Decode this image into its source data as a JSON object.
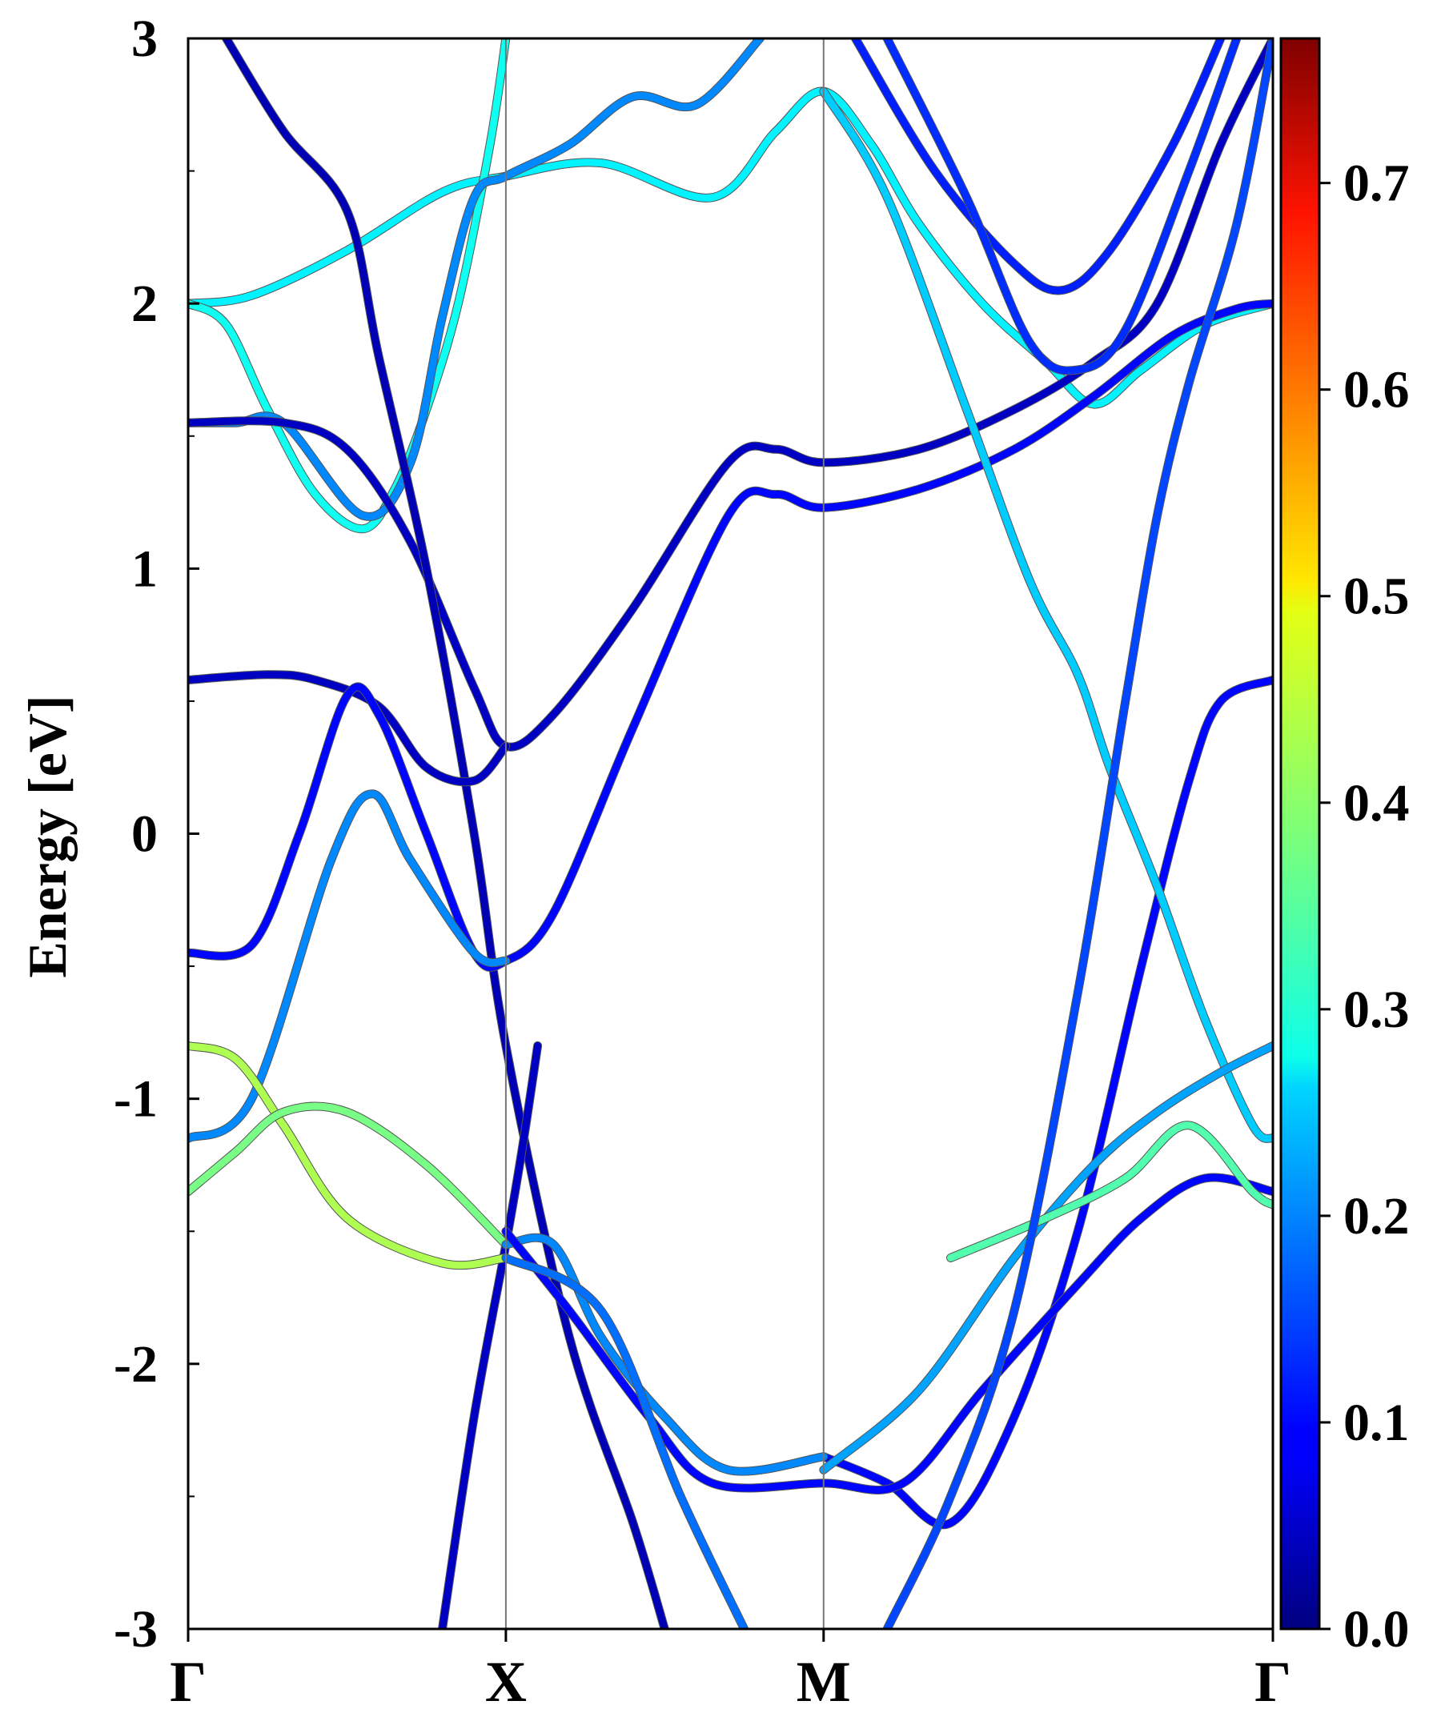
{
  "chart_data": {
    "type": "line",
    "ylabel": "Energy [eV]",
    "ylim": [
      -3,
      3
    ],
    "y_ticks": [
      "3",
      "2",
      "1",
      "0",
      "-1",
      "-2",
      "-3"
    ],
    "x_ticks": [
      "Γ",
      "X",
      "M",
      "Γ"
    ],
    "x_tick_positions": [
      0,
      1,
      2,
      3.414
    ],
    "colorbar": {
      "range": [
        0.0,
        0.77
      ],
      "ticks": [
        "0.7",
        "0.6",
        "0.5",
        "0.4",
        "0.3",
        "0.2",
        "0.1",
        "0.0"
      ],
      "colormap": "jet"
    },
    "grid": false,
    "series": [
      {
        "weight": 0.28,
        "points": [
          [
            0,
            2.0
          ],
          [
            0.2,
            2.03
          ],
          [
            0.5,
            2.2
          ],
          [
            0.8,
            2.42
          ],
          [
            1.0,
            2.48
          ],
          [
            1.3,
            2.53
          ],
          [
            1.65,
            2.4
          ],
          [
            1.85,
            2.65
          ],
          [
            2.0,
            2.8
          ],
          [
            2.15,
            2.6
          ],
          [
            2.3,
            2.3
          ],
          [
            2.5,
            2.0
          ],
          [
            2.7,
            1.78
          ],
          [
            2.85,
            1.62
          ],
          [
            3.0,
            1.75
          ],
          [
            3.2,
            1.92
          ],
          [
            3.414,
            2.0
          ]
        ]
      },
      {
        "weight": 0.3,
        "points": [
          [
            0,
            2.0
          ],
          [
            0.12,
            1.92
          ],
          [
            0.25,
            1.6
          ],
          [
            0.4,
            1.28
          ],
          [
            0.55,
            1.15
          ],
          [
            0.65,
            1.3
          ],
          [
            0.75,
            1.6
          ],
          [
            0.85,
            2.0
          ],
          [
            0.95,
            2.6
          ],
          [
            1.0,
            3.0
          ]
        ]
      },
      {
        "weight": 0.2,
        "points": [
          [
            0,
            1.55
          ],
          [
            0.15,
            1.55
          ],
          [
            0.3,
            1.55
          ],
          [
            0.55,
            1.2
          ],
          [
            0.7,
            1.4
          ],
          [
            0.8,
            1.95
          ],
          [
            0.9,
            2.4
          ],
          [
            1.0,
            2.48
          ],
          [
            1.2,
            2.6
          ],
          [
            1.4,
            2.78
          ],
          [
            1.6,
            2.75
          ],
          [
            1.8,
            3.0
          ]
        ]
      },
      {
        "weight": 0.05,
        "points": [
          [
            0,
            1.55
          ],
          [
            0.3,
            1.55
          ],
          [
            0.5,
            1.45
          ],
          [
            0.7,
            1.1
          ],
          [
            0.9,
            0.55
          ],
          [
            1.0,
            0.33
          ],
          [
            1.15,
            0.45
          ],
          [
            1.4,
            0.85
          ],
          [
            1.7,
            1.4
          ],
          [
            1.85,
            1.45
          ],
          [
            2.0,
            1.4
          ],
          [
            2.3,
            1.45
          ],
          [
            2.6,
            1.6
          ],
          [
            2.85,
            1.78
          ],
          [
            3.05,
            2.0
          ],
          [
            3.25,
            2.6
          ],
          [
            3.414,
            3.0
          ]
        ]
      },
      {
        "weight": 0.04,
        "points": [
          [
            0.12,
            3.0
          ],
          [
            0.3,
            2.65
          ],
          [
            0.5,
            2.35
          ],
          [
            0.6,
            1.8
          ],
          [
            0.75,
            1.0
          ],
          [
            0.9,
            0.0
          ],
          [
            1.0,
            -0.8
          ],
          [
            1.2,
            -1.9
          ],
          [
            1.4,
            -2.6
          ],
          [
            1.5,
            -3.0
          ]
        ]
      },
      {
        "weight": 0.05,
        "points": [
          [
            0,
            0.58
          ],
          [
            0.25,
            0.6
          ],
          [
            0.4,
            0.58
          ],
          [
            0.6,
            0.48
          ],
          [
            0.75,
            0.25
          ],
          [
            0.9,
            0.2
          ],
          [
            1.0,
            0.33
          ]
        ]
      },
      {
        "weight": 0.1,
        "points": [
          [
            0,
            -0.45
          ],
          [
            0.2,
            -0.42
          ],
          [
            0.35,
            0.0
          ],
          [
            0.5,
            0.52
          ],
          [
            0.6,
            0.45
          ],
          [
            0.75,
            0.0
          ],
          [
            0.9,
            -0.45
          ],
          [
            1.0,
            -0.48
          ],
          [
            1.15,
            -0.3
          ],
          [
            1.4,
            0.4
          ],
          [
            1.7,
            1.2
          ],
          [
            1.85,
            1.28
          ],
          [
            2.0,
            1.23
          ],
          [
            2.3,
            1.3
          ],
          [
            2.6,
            1.45
          ],
          [
            2.85,
            1.65
          ],
          [
            3.1,
            1.88
          ],
          [
            3.3,
            1.98
          ],
          [
            3.414,
            2.0
          ]
        ]
      },
      {
        "weight": 0.2,
        "points": [
          [
            0,
            -1.15
          ],
          [
            0.2,
            -1.0
          ],
          [
            0.45,
            -0.1
          ],
          [
            0.58,
            0.15
          ],
          [
            0.7,
            -0.1
          ],
          [
            0.9,
            -0.45
          ],
          [
            1.0,
            -0.48
          ]
        ]
      },
      {
        "weight": 0.05,
        "points": [
          [
            0.8,
            -3.0
          ],
          [
            0.9,
            -2.2
          ],
          [
            1.0,
            -1.55
          ],
          [
            1.05,
            -1.2
          ],
          [
            1.1,
            -0.8
          ]
        ]
      },
      {
        "weight": 0.1,
        "points": [
          [
            2.0,
            -2.35
          ],
          [
            2.2,
            -2.45
          ],
          [
            2.4,
            -2.6
          ],
          [
            2.6,
            -2.2
          ],
          [
            2.8,
            -1.5
          ],
          [
            3.0,
            -0.5
          ],
          [
            3.15,
            0.2
          ],
          [
            3.25,
            0.5
          ],
          [
            3.414,
            0.58
          ]
        ]
      },
      {
        "weight": 0.25,
        "points": [
          [
            2.0,
            2.8
          ],
          [
            2.2,
            2.4
          ],
          [
            2.45,
            1.6
          ],
          [
            2.65,
            0.95
          ],
          [
            2.8,
            0.6
          ],
          [
            2.9,
            0.25
          ],
          [
            3.05,
            -0.2
          ],
          [
            3.2,
            -0.7
          ],
          [
            3.35,
            -1.1
          ],
          [
            3.414,
            -1.15
          ]
        ]
      },
      {
        "weight": 0.42,
        "points": [
          [
            0,
            -0.8
          ],
          [
            0.15,
            -0.85
          ],
          [
            0.3,
            -1.1
          ],
          [
            0.5,
            -1.45
          ],
          [
            0.8,
            -1.62
          ],
          [
            1.0,
            -1.6
          ]
        ]
      },
      {
        "weight": 0.38,
        "points": [
          [
            0,
            -1.35
          ],
          [
            0.15,
            -1.2
          ],
          [
            0.3,
            -1.05
          ],
          [
            0.5,
            -1.05
          ],
          [
            0.75,
            -1.25
          ],
          [
            1.0,
            -1.55
          ]
        ]
      },
      {
        "weight": 0.2,
        "points": [
          [
            1.0,
            -1.55
          ],
          [
            1.15,
            -1.55
          ],
          [
            1.3,
            -1.9
          ],
          [
            1.5,
            -2.2
          ],
          [
            1.7,
            -2.4
          ],
          [
            2.0,
            -2.35
          ]
        ]
      },
      {
        "weight": 0.1,
        "points": [
          [
            1.0,
            -1.5
          ],
          [
            1.2,
            -1.8
          ],
          [
            1.45,
            -2.2
          ],
          [
            1.65,
            -2.45
          ],
          [
            2.0,
            -2.45
          ],
          [
            2.25,
            -2.45
          ],
          [
            2.5,
            -2.1
          ],
          [
            2.8,
            -1.7
          ],
          [
            3.0,
            -1.45
          ],
          [
            3.2,
            -1.3
          ],
          [
            3.414,
            -1.35
          ]
        ]
      },
      {
        "weight": 0.22,
        "points": [
          [
            2.0,
            -2.4
          ],
          [
            2.3,
            -2.1
          ],
          [
            2.6,
            -1.6
          ],
          [
            2.85,
            -1.25
          ],
          [
            3.05,
            -1.05
          ],
          [
            3.25,
            -0.9
          ],
          [
            3.414,
            -0.8
          ]
        ]
      },
      {
        "weight": 0.35,
        "points": [
          [
            2.4,
            -1.6
          ],
          [
            2.7,
            -1.45
          ],
          [
            2.95,
            -1.3
          ],
          [
            3.15,
            -1.1
          ],
          [
            3.35,
            -1.35
          ],
          [
            3.414,
            -1.4
          ]
        ]
      },
      {
        "weight": 0.18,
        "points": [
          [
            1.0,
            -1.6
          ],
          [
            1.3,
            -1.8
          ],
          [
            1.55,
            -2.5
          ],
          [
            1.75,
            -3.0
          ]
        ]
      },
      {
        "weight": 0.15,
        "points": [
          [
            2.2,
            -3.0
          ],
          [
            2.4,
            -2.5
          ],
          [
            2.6,
            -1.8
          ],
          [
            2.8,
            -0.6
          ],
          [
            2.95,
            0.5
          ],
          [
            3.05,
            1.2
          ],
          [
            3.15,
            1.7
          ],
          [
            3.3,
            2.3
          ],
          [
            3.414,
            3.0
          ]
        ]
      },
      {
        "weight": 0.12,
        "points": [
          [
            2.1,
            3.0
          ],
          [
            2.35,
            2.5
          ],
          [
            2.6,
            2.15
          ],
          [
            2.75,
            2.05
          ],
          [
            2.9,
            2.2
          ],
          [
            3.1,
            2.6
          ],
          [
            3.25,
            3.0
          ]
        ]
      },
      {
        "weight": 0.13,
        "points": [
          [
            2.2,
            3.0
          ],
          [
            2.45,
            2.4
          ],
          [
            2.65,
            1.85
          ],
          [
            2.8,
            1.75
          ],
          [
            2.95,
            1.9
          ],
          [
            3.15,
            2.5
          ],
          [
            3.3,
            3.0
          ]
        ]
      }
    ]
  }
}
